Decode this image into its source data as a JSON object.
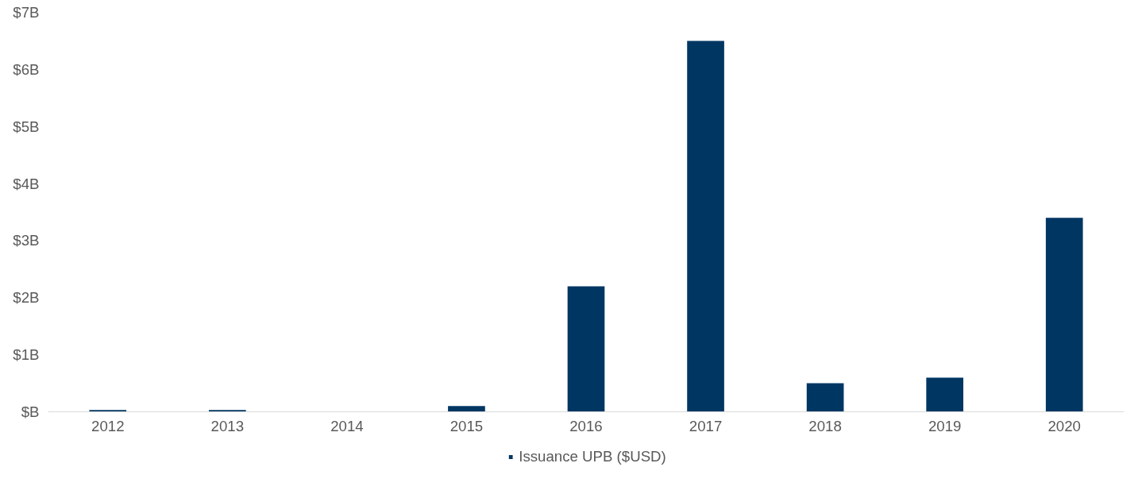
{
  "chart_data": {
    "type": "bar",
    "categories": [
      "2012",
      "2013",
      "2014",
      "2015",
      "2016",
      "2017",
      "2018",
      "2019",
      "2020"
    ],
    "series": [
      {
        "name": "Issuance UPB ($USD)",
        "color": "#003662",
        "values": [
          0.03,
          0.03,
          0,
          0.1,
          2.2,
          6.5,
          0.5,
          0.6,
          3.4
        ]
      }
    ],
    "ylim": [
      0,
      7
    ],
    "yticks": [
      {
        "value": 0,
        "label": "$B"
      },
      {
        "value": 1,
        "label": "$1B"
      },
      {
        "value": 2,
        "label": "$2B"
      },
      {
        "value": 3,
        "label": "$3B"
      },
      {
        "value": 4,
        "label": "$4B"
      },
      {
        "value": 5,
        "label": "$5B"
      },
      {
        "value": 6,
        "label": "$6B"
      },
      {
        "value": 7,
        "label": "$7B"
      }
    ],
    "grid": false,
    "legend": "bottom"
  }
}
